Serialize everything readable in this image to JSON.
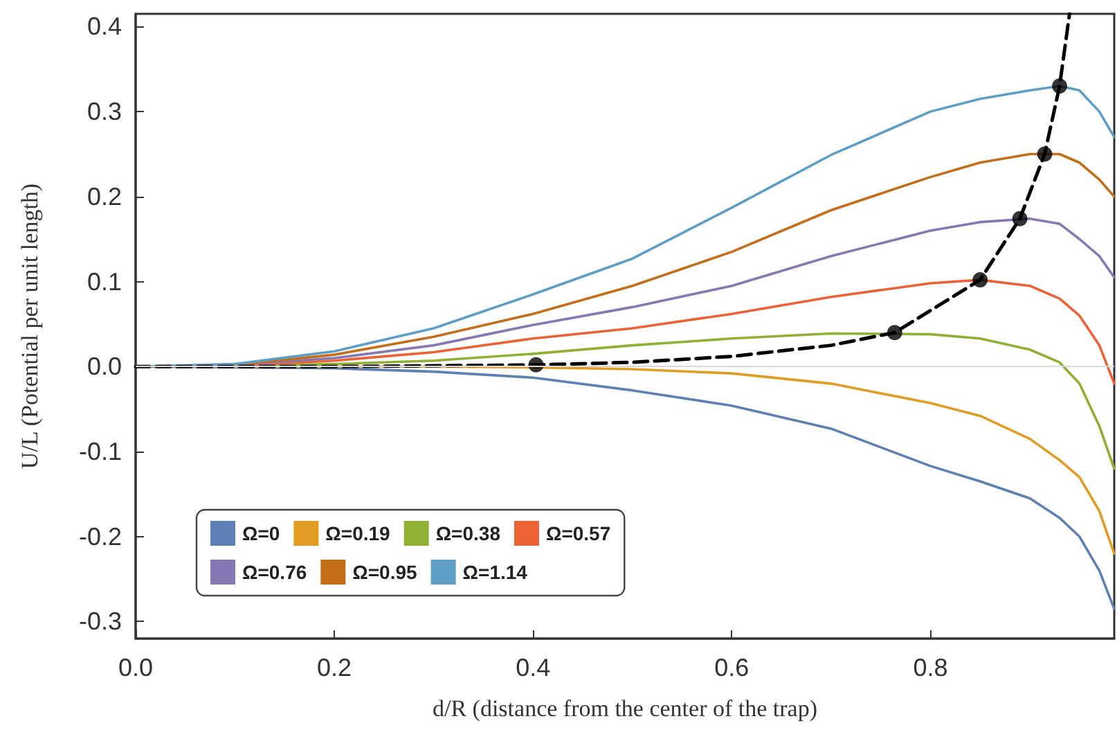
{
  "chart_data": {
    "type": "line",
    "xlabel": "d/R (distance from the center of the trap)",
    "ylabel": "U/L (Potential per unit length)",
    "x": [
      0,
      0.1,
      0.2,
      0.3,
      0.4,
      0.5,
      0.6,
      0.7,
      0.8,
      0.85,
      0.9,
      0.93,
      0.95,
      0.97,
      0.985
    ],
    "series": [
      {
        "name": "Ω=0",
        "color": "#5e81b5",
        "values": [
          0,
          -0.001,
          -0.002,
          -0.006,
          -0.013,
          -0.028,
          -0.046,
          -0.073,
          -0.117,
          -0.135,
          -0.155,
          -0.178,
          -0.2,
          -0.24,
          -0.285
        ]
      },
      {
        "name": "Ω=0.19",
        "color": "#e19c24",
        "values": [
          0,
          0,
          0,
          0,
          -0.001,
          -0.003,
          -0.008,
          -0.02,
          -0.043,
          -0.058,
          -0.085,
          -0.11,
          -0.13,
          -0.17,
          -0.22
        ]
      },
      {
        "name": "Ω=0.38",
        "color": "#8fb032",
        "values": [
          0,
          0.001,
          0.003,
          0.007,
          0.015,
          0.025,
          0.033,
          0.039,
          0.038,
          0.033,
          0.02,
          0.005,
          -0.02,
          -0.07,
          -0.12
        ]
      },
      {
        "name": "Ω=0.57",
        "color": "#eb6235",
        "values": [
          0,
          0.001,
          0.007,
          0.017,
          0.033,
          0.045,
          0.062,
          0.082,
          0.098,
          0.102,
          0.095,
          0.08,
          0.06,
          0.025,
          -0.02
        ]
      },
      {
        "name": "Ω=0.76",
        "color": "#8778b3",
        "values": [
          0,
          0.002,
          0.01,
          0.025,
          0.049,
          0.07,
          0.095,
          0.13,
          0.16,
          0.17,
          0.174,
          0.168,
          0.15,
          0.13,
          0.105
        ]
      },
      {
        "name": "Ω=0.95",
        "color": "#c56e1a",
        "values": [
          0,
          0.002,
          0.014,
          0.035,
          0.062,
          0.095,
          0.135,
          0.184,
          0.223,
          0.24,
          0.25,
          0.25,
          0.24,
          0.22,
          0.2
        ]
      },
      {
        "name": "Ω=1.14",
        "color": "#5d9ec7",
        "values": [
          0,
          0.003,
          0.018,
          0.045,
          0.085,
          0.127,
          0.187,
          0.249,
          0.3,
          0.315,
          0.325,
          0.33,
          0.325,
          0.3,
          0.27
        ]
      },
      {
        "color": "#000000",
        "line_style": "dashed",
        "marker": "none",
        "x": [
          0,
          0.2,
          0.4,
          0.5,
          0.6,
          0.7,
          0.764,
          0.85,
          0.89,
          0.915,
          0.93,
          0.94
        ],
        "values": [
          0,
          0,
          0.002,
          0.005,
          0.012,
          0.025,
          0.04,
          0.102,
          0.174,
          0.25,
          0.33,
          0.415
        ]
      },
      {
        "type": "scatter",
        "color": "#000000",
        "marker": "circle",
        "x": [
          0.403,
          0.764,
          0.85,
          0.89,
          0.915,
          0.93
        ],
        "values": [
          0.002,
          0.04,
          0.102,
          0.174,
          0.25,
          0.33
        ]
      }
    ],
    "xlim": [
      0,
      0.985
    ],
    "xticks": [
      {
        "value": 0,
        "label": "0.0"
      },
      0.2,
      0.4,
      0.6,
      0.8
    ],
    "ylim": [
      -0.32,
      0.415
    ],
    "yticks": [
      -0.3,
      -0.2,
      -0.1,
      {
        "value": 0,
        "label": "0.0"
      },
      0.1,
      0.2,
      0.3,
      0.4
    ],
    "ref_lines": [
      {
        "axis": "y",
        "value": 0,
        "color": "#d9d9d9"
      }
    ],
    "legend": "bottom left",
    "marker": "none",
    "line_style": "solid",
    "grid": false
  }
}
